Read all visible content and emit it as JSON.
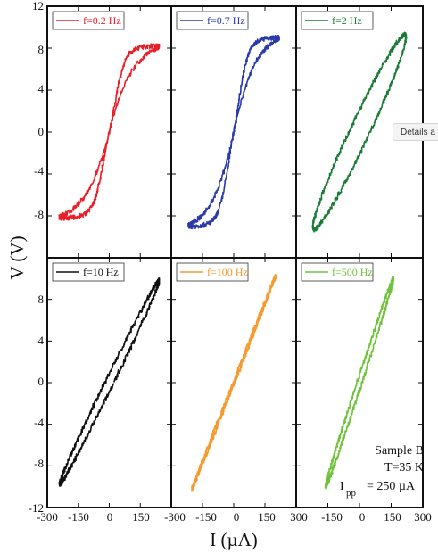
{
  "tooltip": {
    "text": "Details a"
  },
  "chart_data": {
    "type": "line",
    "ylabel": "V (V)",
    "xlabel": "I (µA)",
    "ylim_top": [
      -12,
      12
    ],
    "ylim_bottom": [
      -12,
      12
    ],
    "xlim": [
      -300,
      300
    ],
    "x_ticks": [
      "-300",
      "-150",
      "0",
      "150",
      "300"
    ],
    "x_ticks_right": [
      "-150",
      "0",
      "150",
      "300"
    ],
    "y_ticks_top": [
      "12",
      "8",
      "4",
      "0",
      "-4",
      "-8"
    ],
    "y_ticks_bottom": [
      "8",
      "4",
      "0",
      "-4",
      "-8",
      "-12"
    ],
    "annotation": {
      "sample": "Sample B",
      "temp": "T=35 K",
      "ipp_main": "I",
      "ipp_sub": "pp",
      "ipp_val": "= 250 µA"
    },
    "panels": [
      {
        "name": "f=0.2 Hz",
        "color": "#e8202a",
        "shape": "hyst",
        "amp": 8.2,
        "imax": 220,
        "width": 110,
        "noise": 0.45
      },
      {
        "name": "f=0.7 Hz",
        "color": "#2a3aaa",
        "shape": "hyst",
        "amp": 9.0,
        "imax": 200,
        "width": 95,
        "noise": 0.45
      },
      {
        "name": "f=2 Hz",
        "color": "#1b7a35",
        "shape": "loop",
        "amp": 9.3,
        "imax": 215,
        "width": 50,
        "noise": 0.45
      },
      {
        "name": "f=10 Hz",
        "color": "#111111",
        "shape": "loop",
        "amp": 9.8,
        "imax": 240,
        "width": 22,
        "noise": 0.5
      },
      {
        "name": "f=100 Hz",
        "color": "#f59a2e",
        "shape": "loop",
        "amp": 10.2,
        "imax": 200,
        "width": 4,
        "noise": 0.5
      },
      {
        "name": "f=500 Hz",
        "color": "#6fc23a",
        "shape": "loop",
        "amp": 10.0,
        "imax": 160,
        "width": 12,
        "noise": 0.5
      }
    ]
  }
}
